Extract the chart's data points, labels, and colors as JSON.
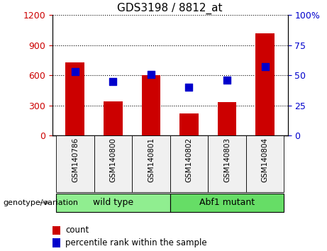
{
  "title": "GDS3198 / 8812_at",
  "samples": [
    "GSM140786",
    "GSM140800",
    "GSM140801",
    "GSM140802",
    "GSM140803",
    "GSM140804"
  ],
  "counts": [
    730,
    340,
    600,
    220,
    330,
    1020
  ],
  "percentiles": [
    53,
    45,
    51,
    40,
    46,
    57
  ],
  "ylim_left": [
    0,
    1200
  ],
  "ylim_right": [
    0,
    100
  ],
  "yticks_left": [
    0,
    300,
    600,
    900,
    1200
  ],
  "yticks_right": [
    0,
    25,
    50,
    75,
    100
  ],
  "bar_color": "#cc0000",
  "dot_color": "#0000cc",
  "groups": [
    {
      "label": "wild type",
      "indices": [
        0,
        1,
        2
      ],
      "color": "#90ee90"
    },
    {
      "label": "Abf1 mutant",
      "indices": [
        3,
        4,
        5
      ],
      "color": "#66dd66"
    }
  ],
  "group_label": "genotype/variation",
  "legend_count": "count",
  "legend_percentile": "percentile rank within the sample",
  "bar_color_legend": "#cc0000",
  "dot_color_legend": "#0000cc",
  "tick_label_color_left": "#cc0000",
  "tick_label_color_right": "#0000cc",
  "bar_width": 0.5,
  "dot_size": 50,
  "bg_color": "#f0f0f0"
}
